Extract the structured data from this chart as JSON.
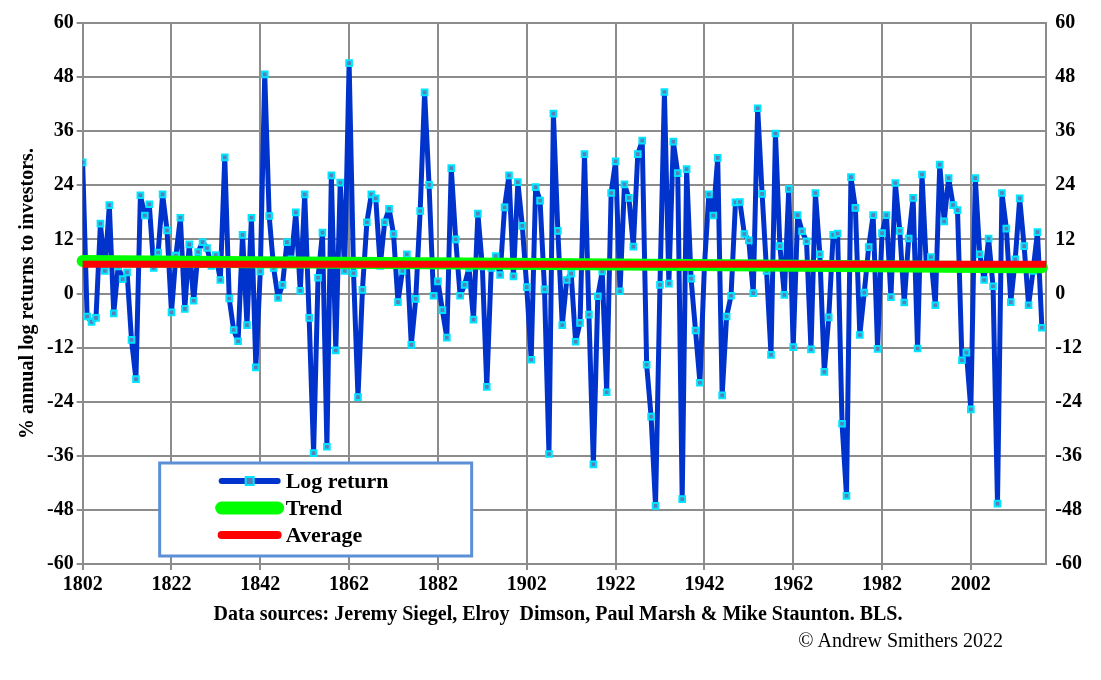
{
  "chart_data": {
    "type": "line",
    "ylabel": "% annual log returns to investors.",
    "x": [
      1802,
      1803,
      1804,
      1805,
      1806,
      1807,
      1808,
      1809,
      1810,
      1811,
      1812,
      1813,
      1814,
      1815,
      1816,
      1817,
      1818,
      1819,
      1820,
      1821,
      1822,
      1823,
      1824,
      1825,
      1826,
      1827,
      1828,
      1829,
      1830,
      1831,
      1832,
      1833,
      1834,
      1835,
      1836,
      1837,
      1838,
      1839,
      1840,
      1841,
      1842,
      1843,
      1844,
      1845,
      1846,
      1847,
      1848,
      1849,
      1850,
      1851,
      1852,
      1853,
      1854,
      1855,
      1856,
      1857,
      1858,
      1859,
      1860,
      1861,
      1862,
      1863,
      1864,
      1865,
      1866,
      1867,
      1868,
      1869,
      1870,
      1871,
      1872,
      1873,
      1874,
      1875,
      1876,
      1877,
      1878,
      1879,
      1880,
      1881,
      1882,
      1883,
      1884,
      1885,
      1886,
      1887,
      1888,
      1889,
      1890,
      1891,
      1892,
      1893,
      1894,
      1895,
      1896,
      1897,
      1898,
      1899,
      1900,
      1901,
      1902,
      1903,
      1904,
      1905,
      1906,
      1907,
      1908,
      1909,
      1910,
      1911,
      1912,
      1913,
      1914,
      1915,
      1916,
      1917,
      1918,
      1919,
      1920,
      1921,
      1922,
      1923,
      1924,
      1925,
      1926,
      1927,
      1928,
      1929,
      1930,
      1931,
      1932,
      1933,
      1934,
      1935,
      1936,
      1937,
      1938,
      1939,
      1940,
      1941,
      1942,
      1943,
      1944,
      1945,
      1946,
      1947,
      1948,
      1949,
      1950,
      1951,
      1952,
      1953,
      1954,
      1955,
      1956,
      1957,
      1958,
      1959,
      1960,
      1961,
      1962,
      1963,
      1964,
      1965,
      1966,
      1967,
      1968,
      1969,
      1970,
      1971,
      1972,
      1973,
      1974,
      1975,
      1976,
      1977,
      1978,
      1979,
      1980,
      1981,
      1982,
      1983,
      1984,
      1985,
      1986,
      1987,
      1988,
      1989,
      1990,
      1991,
      1992,
      1993,
      1994,
      1995,
      1996,
      1997,
      1998,
      1999,
      2000,
      2001,
      2002,
      2003,
      2004,
      2005,
      2006,
      2007,
      2008,
      2009,
      2010,
      2011,
      2012,
      2013,
      2014,
      2015,
      2016,
      2017,
      2018
    ],
    "series": [
      {
        "name": "Log return",
        "color": "#0033cc",
        "marker": "square",
        "values": [
          29.1,
          -5.1,
          -6.3,
          -5.4,
          15.5,
          5,
          19.6,
          -4.4,
          6,
          3.2,
          4.7,
          -10.3,
          -19,
          21.8,
          17.3,
          19.8,
          5.7,
          9.1,
          22,
          14,
          -4.2,
          8.4,
          16.8,
          -3.4,
          10.9,
          -1.6,
          9.2,
          11.4,
          10.1,
          6.1,
          8.5,
          3,
          30.2,
          -1.1,
          -8.1,
          -10.6,
          13,
          -7,
          16.8,
          -16.4,
          4.9,
          48.6,
          17.2,
          5.7,
          -1,
          1.9,
          11.4,
          7.6,
          18,
          0.6,
          22,
          -5.4,
          -35.4,
          3.5,
          13.5,
          -34,
          26.2,
          -12.6,
          24.6,
          5,
          51.1,
          4.5,
          -23,
          0.8,
          15.8,
          22,
          21.1,
          6.1,
          15.8,
          18.8,
          13.2,
          -1.9,
          5,
          8.7,
          -11.4,
          -1.2,
          18.3,
          44.6,
          24.1,
          -0.5,
          2.7,
          -3.7,
          -9.8,
          27.8,
          12,
          -0.5,
          1.9,
          5.7,
          -5.8,
          17.7,
          6,
          -20.7,
          5.7,
          8.3,
          4.1,
          19.1,
          26.2,
          3.8,
          24.7,
          15,
          1.4,
          -14.7,
          23.6,
          20.6,
          0.9,
          -35.6,
          39.9,
          13.9,
          -7,
          3,
          4.4,
          -10.7,
          -6.5,
          30.9,
          -4.7,
          -37.9,
          -0.6,
          4.9,
          -21.9,
          22.3,
          29.3,
          0.5,
          24.2,
          21.2,
          10.4,
          30.9,
          33.9,
          -15.8,
          -27.3,
          -47.1,
          1.9,
          44.7,
          2.2,
          33.7,
          26.7,
          -45.6,
          27.6,
          3.3,
          -8.2,
          -19.8,
          5.9,
          22,
          17.3,
          30.1,
          -22.6,
          -5.1,
          -0.5,
          20.2,
          20.3,
          13.2,
          11.8,
          0.1,
          41.1,
          22.1,
          5,
          -13.6,
          35.5,
          10.5,
          -0.3,
          23.2,
          -11.9,
          17.4,
          13.8,
          11.6,
          -12.4,
          22.3,
          8.7,
          -17.4,
          -5.3,
          13,
          13.3,
          -28.9,
          -44.9,
          25.8,
          19,
          -9.2,
          0.2,
          10.3,
          17.4,
          -12.3,
          13.4,
          17.4,
          -0.8,
          24.5,
          13.9,
          -2,
          12.2,
          21.2,
          -12.2,
          26.4,
          5.7,
          8.1,
          -2.6,
          28.6,
          16,
          25.6,
          19.6,
          18.5,
          -14.8,
          -13.1,
          -25.7,
          25.6,
          8.7,
          3,
          12.2,
          1.6,
          -46.6,
          22.3,
          14.4,
          -1.9,
          7.6,
          21.1,
          10.5,
          -2.6,
          5,
          13.6,
          -7.6
        ]
      },
      {
        "name": "Trend",
        "color": "#00ff00",
        "marker": "none",
        "x": [
          1802,
          2018
        ],
        "values": [
          7.2,
          5.8
        ]
      }
    ],
    "ref_lines": [
      {
        "axis": "y",
        "value": 6.5,
        "label": "Average",
        "color": "#ff0000"
      }
    ],
    "xlim": [
      1802,
      2019
    ],
    "xticks": [
      1802,
      1822,
      1842,
      1862,
      1882,
      1902,
      1922,
      1942,
      1962,
      1982,
      2002
    ],
    "ylim": [
      -60,
      60
    ],
    "yticks": [
      -60,
      -48,
      -36,
      -24,
      -12,
      0,
      12,
      24,
      36,
      48,
      60
    ],
    "y2lim": [
      -60,
      60
    ],
    "y2ticks": [
      -60,
      -48,
      -36,
      -24,
      -12,
      0,
      12,
      24,
      36,
      48,
      60
    ],
    "grid": true,
    "legend": "bottom left",
    "annotations": [
      "Data sources: Jeremy Siegel, Elroy  Dimson, Paul Marsh & Mike Staunton. BLS.",
      "© Andrew Smithers 2022"
    ]
  }
}
